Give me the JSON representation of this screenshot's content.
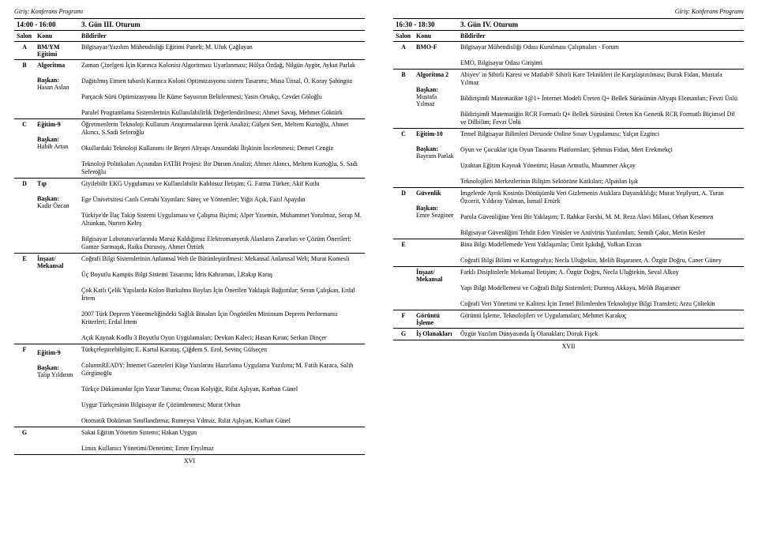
{
  "running_head_left": "Giriş: Konferans Programı",
  "running_head_right": "Giriş: Konferans Programı",
  "page_num_left": "XVI",
  "page_num_right": "XVII",
  "left": {
    "time": "14:00 - 16:00",
    "session": "3. Gün III. Oturum",
    "col_salon": "Salon",
    "col_konu": "Konu",
    "col_bild": "Bildiriler",
    "rows": [
      {
        "salon": "A",
        "konu": "BM/YM Eğitimi",
        "body_items": [
          "Bilgisayar/Yazılım Mühendisliği Eğitimi Paneli; M. Ufuk Çağlayan"
        ]
      },
      {
        "salon": "B",
        "konu": "Algoritma",
        "chair_label": "Başkan:",
        "chair": "Hasan Aslan",
        "body_items": [
          "Zaman Çizelgesi İçin Karınca Kolonisi Algoritması Uyarlanması; Hülya Özdağ, Nilgün Aygör, Aykut Parlak",
          "Dağıtılmış Etmen tabanlı Karınca Koloni Optimizasyonu sistem Tasarımı; Musa Ünsal, Ö. Koray Şahingöz",
          "Parçacık Sürü Optimizasyonu İle Küme Sayısının Belirlenmesi; Yasin Ortakçı, Cevdet Göloğlu",
          "Paralel Programlama Sistemlerinin Kullanılabilirlik Değerlendirilmesi; Ahmet Savaş, Mehmet Göktürk"
        ]
      },
      {
        "salon": "C",
        "konu": "Eğitim-9",
        "chair_label": "Başkan:",
        "chair": "Habib Artan",
        "body_items": [
          "Öğretmenlerin Teknoloji Kullanım Araştırmalarının İçerik Analizi; Gülşen Sert, Meltem Kurtoğlu, Ahmet Akıncı, S.Sadi Seferoğlu",
          "Okullardaki Teknoloji Kullanımı ile Beşeri Altyapı Arasındaki İlişkinin İncelenmesi; Demet Cengiz",
          "Teknoloji Politikaları Açısından FATİH Projesi: Bir Durum Analizi; Ahmet Akıncı, Meltem Kurtoğlu, S. Sadi Seferoğlu"
        ]
      },
      {
        "salon": "D",
        "konu": "Tıp",
        "chair_label": "Başkan:",
        "chair": "Kadir Özcan",
        "body_items": [
          "Giyilebilir EKG Uygulaması ve Kullanılabilir Kablosuz İletişim; G. Fatma Türker, Akif Kutlu",
          "Ege Üniversitesi Canlı Cerrahi Yayınları: Süreç ve Yöntemler; Yiğit Açık, Fazıl Apaydın",
          "Türkiye'de İlaç Takip Sistemi Uygulaması ve Çalışma Biçimi; Alper Yasemin, Muhammet Yorulmaz, Serap M. Altunkan, Nurten Keleş",
          "Bilgisayar Laboratuvarlarında Maruz Kaldığımız Elektromanyetik Alanların Zararları ve Çözüm Önerileri; Gamze Sarmaşık, Raika Durusoy, Ahmet Öztürk"
        ]
      },
      {
        "salon": "E",
        "konu": "İnşaat/ Mekansal",
        "body_items": [
          "Coğrafi Bilgi Sistemlerinin Anlamsal Web ile Bütünleştirilmesi: Mekansal Anlamsal Web; Murat Komesli",
          "Üç Boyutlu Kampüs Bilgi Sistemi Tasarımı; İdris Kahraman, İ.Rakıp Karaş",
          "Çok Katlı Çelik Yapılarda Kolon Burkulma Boyları İçin Önerilen Yaklaşık Bağıntılar; Seran Çalışkan, Erdal İrtem",
          "2007 Türk Deprem Yönetmeliğindeki Sağlık Binaları İçin Öngörülen Minimum Deprem Performansı Kriterleri; Erdal İrtem",
          "Açık Kaynak Kodlu 3 Boyutlu Oyun Uygulamaları; Devkan Kaleci; Hasan Kıran; Serkan Dinçer"
        ]
      },
      {
        "salon": "F",
        "konu": "",
        "sub": "Eğitim-9",
        "chair_label": "Başkan:",
        "chair": "Talip Yıldırım",
        "body_items": [
          "Türkçeleştirebilişim; E. Kartal Karataş, Çiğdem S. Erol, Sevinç Gülseçen",
          "ColumnREADY: İnternet Gazeteleri Köşe Yazılarını Hazırlama Uygulama Yazılımı; M. Fatih Karaca, Salih Görgünoğlu",
          "Türkçe Dökümanlar İçin Yazar Tanıma; Özcan Kolyiğit, Rıfat Aşlıyan, Korhan Günel",
          "Uygur Türkçesinin Bilgisayar ile Çözümlenmesi; Murat Orhun",
          "Otomatik Doküman Sınıflandırma; Rumeysa Yılmaz, Rıfat Aşlıyan, Korhan Günel"
        ]
      },
      {
        "salon": "G",
        "konu": "",
        "body_items": [
          "Sakai Eğitim Yönetim Sistemi; Hakan Uygun",
          "Linux Kullanıcı Yönetimi/Denetimi; Emre Eryılmaz"
        ]
      }
    ]
  },
  "right": {
    "time": "16:30 - 18:30",
    "session": "3. Gün IV. Oturum",
    "col_salon": "Salon",
    "col_konu": "Konu",
    "col_bild": "Bildiriler",
    "rows": [
      {
        "salon": "A",
        "konu": "BMO-F",
        "body_items": [
          "Bilgisayar Mühendisliği Odası Kurulması Çalışmaları - Forum",
          "EMO, Bilgisayar Odası Girişimi"
        ]
      },
      {
        "salon": "B",
        "konu": "Algoritma 2",
        "chair_label": "Başkan:",
        "chair": "Mustafa Yılmaz",
        "body_items": [
          "Abiyev' in Sihirli Karesi ve Matlab® Sihirli Kare Teknikleri ile Karşılaştırılması; Burak Fidan, Mustafa Yılmaz",
          "Bildirişimli Matematikte 1@1+ İnternet Modeli Üreten Q+ Bellek Sürüsünün Altyapı Elemanları; Fevzi Ünlü",
          "Bildirişimli Matematiğin RCR Formatlı Q+ Bellek Sürüsünü Üreten Kn Genetik RCR Formatlı Biçimsel Dil ve Dilbilim; Fevzi Ünlü"
        ]
      },
      {
        "salon": "C",
        "konu": "Eğitim-10",
        "chair_label": "Başkan:",
        "chair": "Bayram Parlak",
        "body_items": [
          "Temel Bilgisayar Bilimleri Dersinde Online Sınav Uygulaması; Yalçın Ezginci",
          "Oyun ve Çocuklar için Oyun Tasarımı Platformları; Şehmus Fidan, Mert Erekmekçi",
          "Uzaktan Eğitim Kaynak Yönetimi; Hasan Armutlu, Muammer Akçay",
          "Teknolojileri Merkezlerinin Bilişim Sektörüne Katkıları; Alpaslan Işık"
        ]
      },
      {
        "salon": "D",
        "konu": "Güvenlik",
        "chair_label": "Başkan:",
        "chair": "Emre Sezginer",
        "body_items": [
          "İmgelerde Ayrık Kosinüs Dönüşümlü Veri Gizlemenin Ataklara Dayanıklılığı; Murat Yeşilyurt, A. Turan Özcerit, Yıldıray Yalman, İsmail Ertürk",
          "Parola Güvenliğine Yeni Bir Yaklaşım; T. Rahkar Farshi, M. M. Reza Alavi Milani, Orhan Kesemen",
          "Bilgisayar Güvenliğini Tehdit Eden Virüsler ve Antivirüs Yazılımları; Semih Çakır, Metin Kesler"
        ]
      },
      {
        "salon": "E",
        "konu": "",
        "body_items": [
          "Bina Bilgi Modellemede Yeni Yaklaşımlar; Ümit Işıkdağ, Volkan Ezcan",
          "Coğrafi Bilgi Bilimi ve Kartografya; Necla Uluğtekin, Melih Başaraner, A. Özgür Doğru, Caner Güney"
        ]
      },
      {
        "salon": "",
        "konu": "İnşaat/ Mekansal",
        "body_items": [
          "Farklı Disiplinlerle Mekansal İletişim; A. Özgür Doğru, Necla Uluğtekin, Seval Alkoy",
          "Yapı Bilgi Modellemesi ve Coğrafi Bilgi Sistemleri; Durmuş Akkaya, Melih Başaraner",
          "Coğrafi Veri Yönetimi ve Kalitesi İçin Temel Bilimlerden Teknolojiye Bilgi Transferi; Arzu Çöltekin"
        ]
      },
      {
        "salon": "F",
        "konu": "Görüntü İşleme",
        "body_items": [
          "Görüntü İşleme, Teknolojileri ve Uygulamaları; Mehmet Karakoç"
        ]
      },
      {
        "salon": "G",
        "konu": "İş Olanakları",
        "body_items": [
          "Özgür Yazılım Dünyasında İş Olanakları; Doruk Fişek"
        ]
      }
    ]
  }
}
